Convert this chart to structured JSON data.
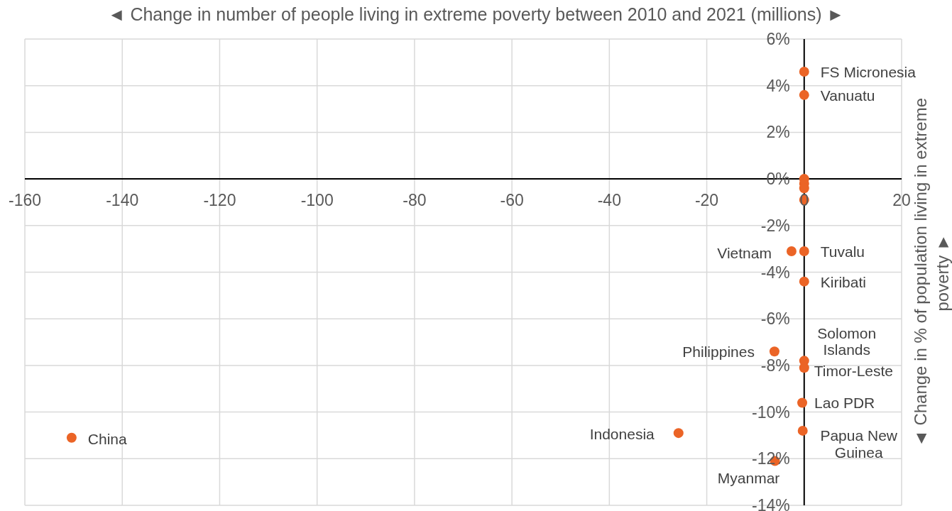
{
  "chart_data": {
    "type": "scatter",
    "xlabel": "◄ Change in number of people living in extreme poverty between 2010 and 2021 (millions) ►",
    "ylabel": "◄ Change in % of population living in extreme poverty ►",
    "x": [
      0,
      0,
      0,
      0,
      0,
      0,
      -2.6,
      0,
      0,
      -6.1,
      0,
      0,
      -0.4,
      -0.3,
      -25.8,
      -6.0,
      -150.4
    ],
    "values": [
      4.6,
      3.6,
      0,
      -0.2,
      -0.4,
      -0.9,
      -3.1,
      -3.1,
      -4.4,
      -7.4,
      -7.8,
      -8.1,
      -9.6,
      -10.8,
      -10.9,
      -12.1,
      -11.1
    ],
    "color": "#eb6426",
    "marker": "circle",
    "grid": true,
    "xlim": [
      -160,
      20
    ],
    "xticks": [
      -160,
      -140,
      -120,
      -100,
      -80,
      -60,
      -40,
      -20,
      0,
      20
    ],
    "ylim": [
      -14,
      6
    ],
    "yticks": [
      {
        "value": -14,
        "label": "-14%"
      },
      {
        "value": -12,
        "label": "-12%"
      },
      {
        "value": -10,
        "label": "-10%"
      },
      {
        "value": -8,
        "label": "-8%"
      },
      {
        "value": -6,
        "label": "-6%"
      },
      {
        "value": -4,
        "label": "-4%"
      },
      {
        "value": -2,
        "label": "-2%"
      },
      {
        "value": 0,
        "label": "0%"
      },
      {
        "value": 2,
        "label": "2%"
      },
      {
        "value": 4,
        "label": "4%"
      },
      {
        "value": 6,
        "label": "6%"
      }
    ],
    "annotations": [
      {
        "text": "FS Micronesia",
        "x": 0,
        "y": 4.6
      },
      {
        "text": "Vanuatu",
        "x": 0,
        "y": 3.6
      },
      {
        "text": "Vietnam",
        "x": -2.6,
        "y": -3.1
      },
      {
        "text": "Tuvalu",
        "x": 0,
        "y": -3.1
      },
      {
        "text": "Kiribati",
        "x": 0,
        "y": -4.4
      },
      {
        "text": "Philippines",
        "x": -6.1,
        "y": -7.4
      },
      {
        "text": "Solomon Islands",
        "x": 0,
        "y": -7.8
      },
      {
        "text": "Timor-Leste",
        "x": 0,
        "y": -8.1
      },
      {
        "text": "Lao PDR",
        "x": -0.4,
        "y": -9.6
      },
      {
        "text": "Papua New Guinea",
        "x": -0.3,
        "y": -10.8
      },
      {
        "text": "Indonesia",
        "x": -25.8,
        "y": -10.9
      },
      {
        "text": "Myanmar",
        "x": -6.0,
        "y": -12.1
      },
      {
        "text": "China",
        "x": -150.4,
        "y": -11.1
      }
    ]
  }
}
